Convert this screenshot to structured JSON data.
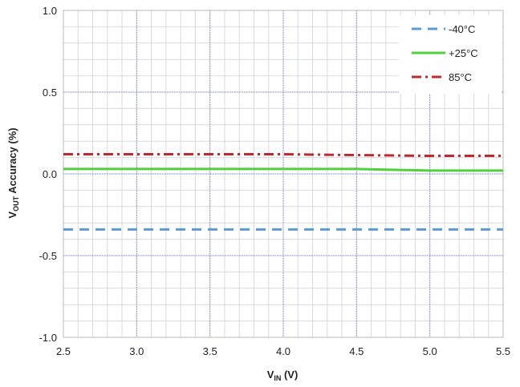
{
  "chart_data": {
    "type": "line",
    "x_axis": {
      "label_main": "V",
      "label_sub": "IN",
      "label_unit": " (V)",
      "range": [
        2.5,
        5.5
      ],
      "ticks": [
        "2.5",
        "3.0",
        "3.5",
        "4.0",
        "4.5",
        "5.0",
        "5.5"
      ],
      "tick_values": [
        2.5,
        3.0,
        3.5,
        4.0,
        4.5,
        5.0,
        5.5
      ]
    },
    "y_axis": {
      "label_main": "V",
      "label_sub": "OUT",
      "label_unit": " Accuracy (%)",
      "range": [
        -1.0,
        1.0
      ],
      "ticks": [
        "1.0",
        "0.5",
        "0.0",
        "-0.5",
        "-1.0"
      ],
      "tick_values": [
        1.0,
        0.5,
        0.0,
        -0.5,
        -1.0
      ]
    },
    "grid": {
      "major": true,
      "minor": true
    },
    "legend_position": "top-right",
    "series": [
      {
        "name": "-40°C",
        "color": "#5b9bd5",
        "dash": "dashed",
        "x": [
          2.5,
          3.0,
          3.5,
          4.0,
          4.5,
          5.0,
          5.5
        ],
        "y": [
          -0.34,
          -0.34,
          -0.34,
          -0.34,
          -0.34,
          -0.34,
          -0.34
        ]
      },
      {
        "name": "+25°C",
        "color": "#4fd13b",
        "dash": "solid",
        "x": [
          2.5,
          3.0,
          3.5,
          4.0,
          4.5,
          5.0,
          5.5
        ],
        "y": [
          0.03,
          0.03,
          0.03,
          0.03,
          0.03,
          0.02,
          0.02
        ]
      },
      {
        "name": "85°C",
        "color": "#c0292b",
        "dash": "dashdot",
        "x": [
          2.5,
          3.0,
          3.5,
          4.0,
          4.5,
          5.0,
          5.5
        ],
        "y": [
          0.12,
          0.12,
          0.12,
          0.12,
          0.115,
          0.11,
          0.11
        ]
      }
    ]
  }
}
